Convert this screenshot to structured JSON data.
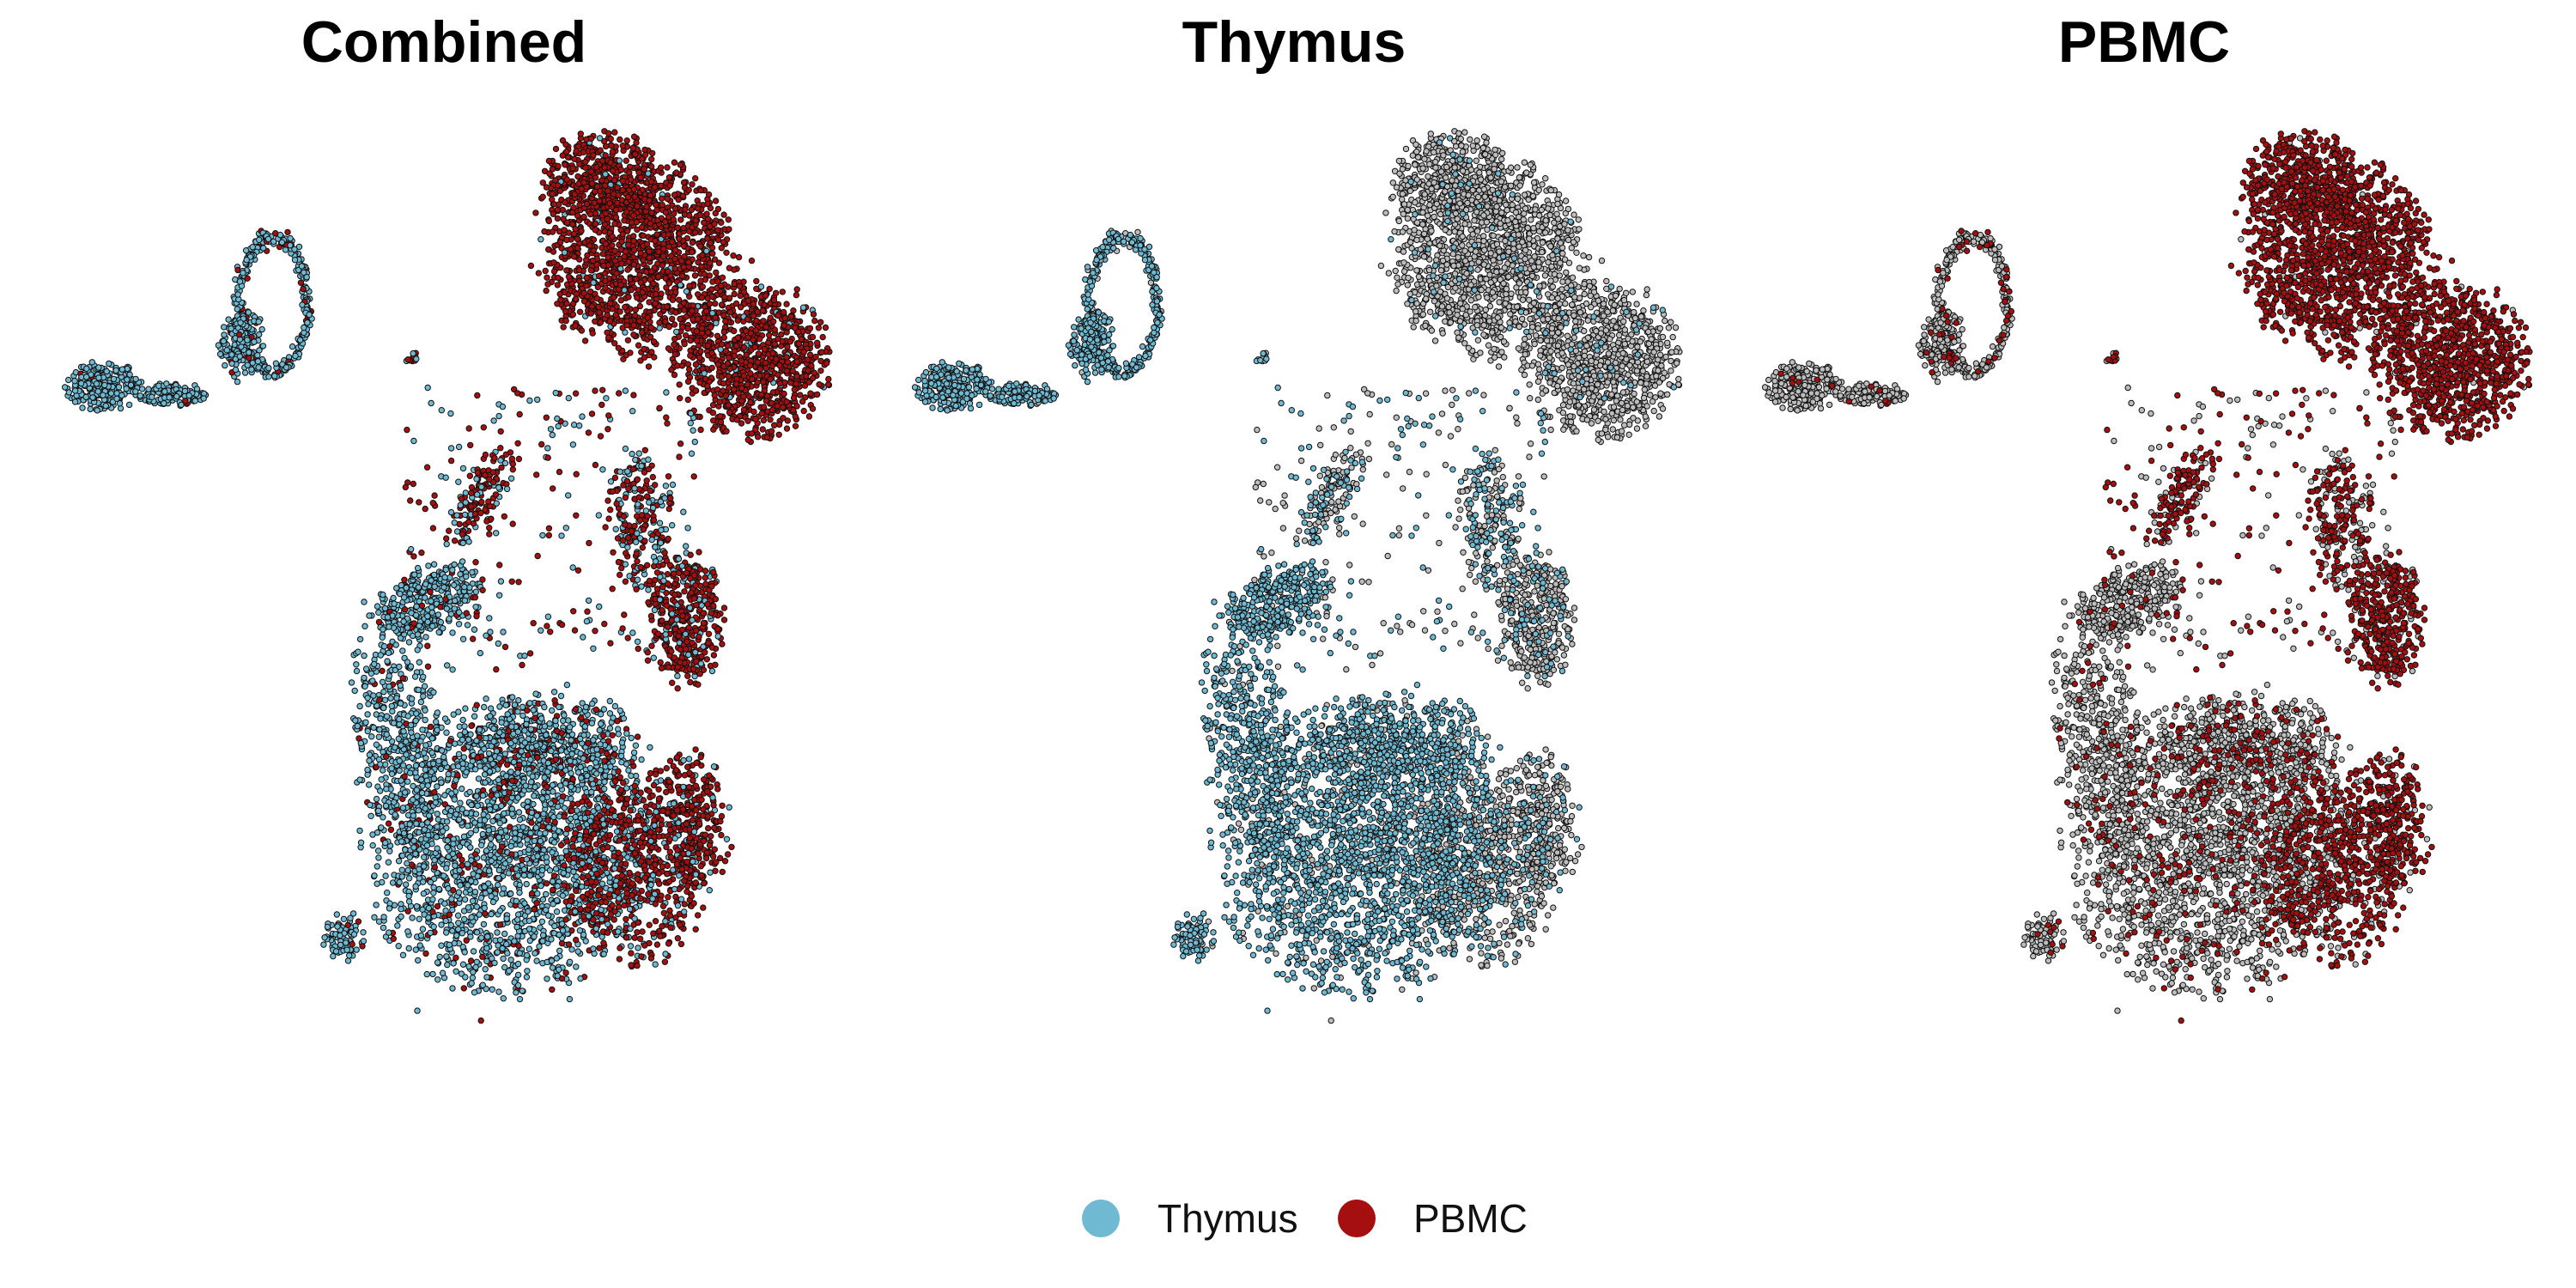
{
  "chart_data": [
    {
      "type": "scatter",
      "title": "Combined",
      "subset": "all",
      "highlight": null
    },
    {
      "type": "scatter",
      "title": "Thymus",
      "subset": "Thymus",
      "highlight": "Thymus"
    },
    {
      "type": "scatter",
      "title": "PBMC",
      "subset": "PBMC",
      "highlight": "PBMC"
    }
  ],
  "legend": {
    "items": [
      {
        "label": "Thymus",
        "color": "#6fb9d2"
      },
      {
        "label": "PBMC",
        "color": "#a50f0f"
      }
    ]
  },
  "colors": {
    "thymus": "#6fb9d2",
    "pbmc": "#a50f0f",
    "background_cells": "#bdbdbd",
    "outline": "#111111"
  },
  "axes": {
    "visible": false,
    "grid": false
  },
  "legend_position": "bottom"
}
